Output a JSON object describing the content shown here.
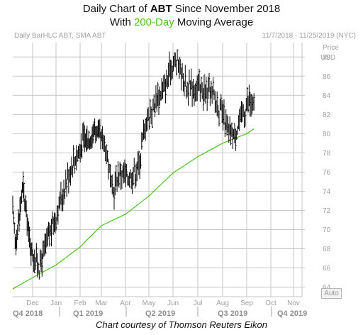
{
  "title": {
    "line1_prefix": "Daily Chart of ",
    "line1_ticker": "ABT",
    "line1_suffix": " Since November 2018",
    "line2_prefix": "With ",
    "line2_highlight": "200-Day",
    "line2_suffix": " Moving Average"
  },
  "header_left": "Daily BarHLC ABT, SMA ABT",
  "header_right": "11/7/2018 - 11/25/2019 (NYC)",
  "auto_label": "Auto",
  "credit": "Chart courtesy of Thomson Reuters Eikon",
  "colors": {
    "bars": "#000000",
    "sma": "#4cc21c",
    "grid": "#c4c4c4",
    "axis_text": "#a0a0a0",
    "highlight": "#4cc21c"
  },
  "chart_data": {
    "type": "line",
    "ylabel_line1": "Price",
    "ylabel_line2": "USD",
    "ylim": [
      63,
      89.5
    ],
    "y_ticks": [
      64,
      66,
      68,
      70,
      72,
      74,
      76,
      78,
      80,
      82,
      84,
      86,
      88
    ],
    "grid": true,
    "months": [
      "Dec",
      "Jan",
      "Feb",
      "Mar",
      "Apr",
      "May",
      "Jun",
      "Jul",
      "Aug",
      "Sep",
      "Oct",
      "Nov"
    ],
    "quarters": [
      "Q4 2018",
      "Q1 2019",
      "Q2 2019",
      "Q3 2019",
      "Q4 2019"
    ],
    "price_path": [
      {
        "t": 0,
        "v": 71.5
      },
      {
        "t": 0.15,
        "v": 68.5
      },
      {
        "t": 0.5,
        "v": 74.5
      },
      {
        "t": 0.9,
        "v": 68
      },
      {
        "t": 1.3,
        "v": 66
      },
      {
        "t": 1.6,
        "v": 68.5
      },
      {
        "t": 2.2,
        "v": 73
      },
      {
        "t": 2.6,
        "v": 76.5
      },
      {
        "t": 3.2,
        "v": 79.5
      },
      {
        "t": 3.45,
        "v": 79.5
      },
      {
        "t": 3.7,
        "v": 80.5
      },
      {
        "t": 4.2,
        "v": 78.5
      },
      {
        "t": 4.45,
        "v": 73.5
      },
      {
        "t": 4.7,
        "v": 76
      },
      {
        "t": 5.2,
        "v": 75.5
      },
      {
        "t": 5.55,
        "v": 76.5
      },
      {
        "t": 5.85,
        "v": 81
      },
      {
        "t": 6.3,
        "v": 83.5
      },
      {
        "t": 6.75,
        "v": 85.5
      },
      {
        "t": 6.9,
        "v": 87
      },
      {
        "t": 7.2,
        "v": 87.5
      },
      {
        "t": 7.5,
        "v": 85
      },
      {
        "t": 8.2,
        "v": 84.5
      },
      {
        "t": 8.6,
        "v": 84
      },
      {
        "t": 9.0,
        "v": 82
      },
      {
        "t": 9.25,
        "v": 80
      },
      {
        "t": 9.5,
        "v": 80
      },
      {
        "t": 9.8,
        "v": 82
      },
      {
        "t": 10.1,
        "v": 83.5
      },
      {
        "t": 10.3,
        "v": 82.5
      }
    ],
    "sma_200": [
      {
        "t": 0,
        "v": 63.8
      },
      {
        "t": 1,
        "v": 65
      },
      {
        "t": 2,
        "v": 66.3
      },
      {
        "t": 3,
        "v": 68.2
      },
      {
        "t": 4,
        "v": 70.4
      },
      {
        "t": 5,
        "v": 71.6
      },
      {
        "t": 6,
        "v": 73.5
      },
      {
        "t": 7,
        "v": 75.9
      },
      {
        "t": 8,
        "v": 77.6
      },
      {
        "t": 9,
        "v": 79.0
      },
      {
        "t": 10,
        "v": 80.0
      },
      {
        "t": 10.3,
        "v": 80.5
      }
    ]
  }
}
